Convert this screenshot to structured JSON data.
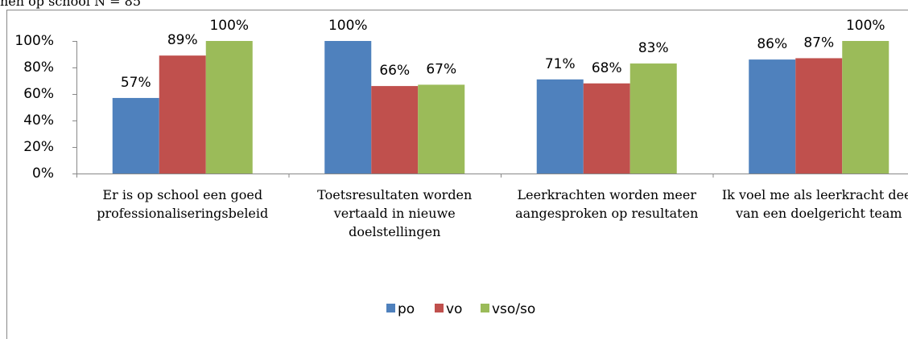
{
  "chart_data": {
    "type": "bar",
    "title": "nen op school N = 85",
    "categories": [
      "Er is op school een goed professionaliseringsbeleid",
      "Toetsresultaten worden vertaald in nieuwe doelstellingen",
      "Leerkrachten worden meer aangesproken op resultaten",
      "Ik voel me als leerkracht deel van een doelgericht team"
    ],
    "series": [
      {
        "name": "po",
        "color": "#4f81bd",
        "values": [
          57,
          100,
          71,
          86
        ],
        "value_labels": [
          "57%",
          "100%",
          "71%",
          "86%"
        ]
      },
      {
        "name": "vo",
        "color": "#c0504d",
        "values": [
          89,
          66,
          68,
          87
        ],
        "value_labels": [
          "89%",
          "66%",
          "68%",
          "87%"
        ]
      },
      {
        "name": "vso/so",
        "color": "#9bbb59",
        "values": [
          100,
          67,
          83,
          100
        ],
        "value_labels": [
          "100%",
          "67%",
          "83%",
          "100%"
        ]
      }
    ],
    "ylim": [
      0,
      100
    ],
    "yticks": [
      {
        "value": 0,
        "label": "0%"
      },
      {
        "value": 20,
        "label": "20%"
      },
      {
        "value": 40,
        "label": "40%"
      },
      {
        "value": 60,
        "label": "60%"
      },
      {
        "value": 80,
        "label": "80%"
      },
      {
        "value": 100,
        "label": "100%"
      }
    ],
    "legend": "bottom"
  }
}
